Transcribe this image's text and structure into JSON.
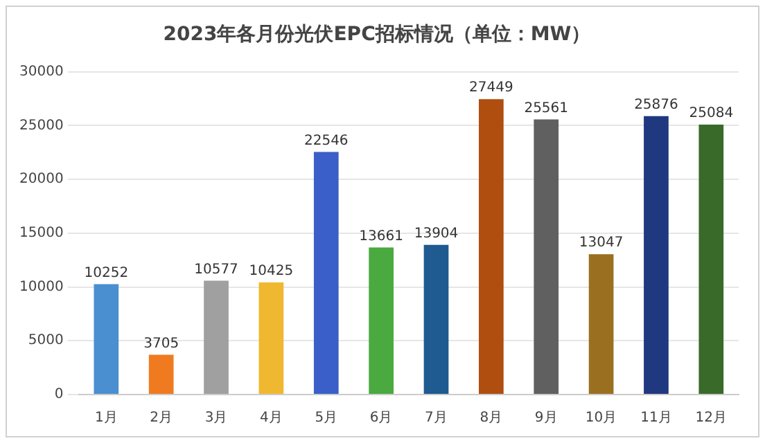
{
  "chart_data": {
    "type": "bar",
    "title": "2023年各月份光伏EPC招标情况（单位：MW）",
    "categories": [
      "1月",
      "2月",
      "3月",
      "4月",
      "5月",
      "6月",
      "7月",
      "8月",
      "9月",
      "10月",
      "11月",
      "12月"
    ],
    "values": [
      10252,
      3705,
      10577,
      10425,
      22546,
      13661,
      13904,
      27449,
      25561,
      13047,
      25876,
      25084
    ],
    "colors": [
      "#4a8fd0",
      "#f07a20",
      "#a0a0a0",
      "#f0b830",
      "#3a5fc8",
      "#4aaa40",
      "#1f5a90",
      "#b04e10",
      "#606060",
      "#9a7020",
      "#203880",
      "#3a6a2a"
    ],
    "ylim": [
      0,
      30000
    ],
    "yticks": [
      0,
      5000,
      10000,
      15000,
      20000,
      25000,
      30000
    ],
    "grid": "y",
    "data_labels": true
  }
}
